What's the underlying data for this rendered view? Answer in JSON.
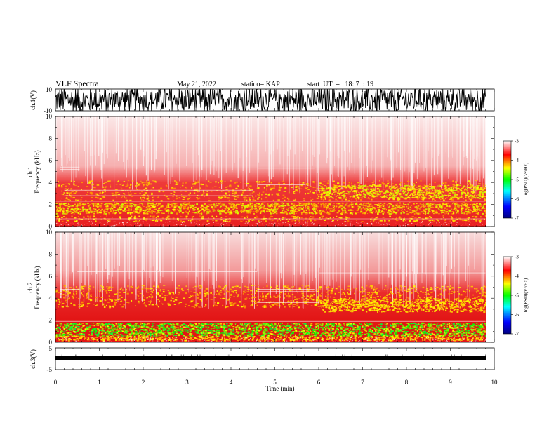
{
  "header": {
    "title": "VLF Spectra",
    "date": "May 21, 2022",
    "station": "station= KAP",
    "start_ut": "start  UT  =   18: 7  : 19"
  },
  "axes": {
    "ch1_volt_label": "ch.1(V)",
    "ch3_volt_label": "ch.3(V)",
    "ch1_freq_label_ch": "ch.1",
    "ch2_freq_label_ch": "ch.2",
    "freq_label": "Frequency  (kHz)",
    "xlabel": "Time  (min)",
    "colorbar_label": "log(PSD)(V²/Hz)",
    "ch1_volt_ticks": [
      "10",
      "-10"
    ],
    "ch3_volt_ticks": [
      "5",
      "-5"
    ],
    "freq_ticks": [
      "0",
      "2",
      "4",
      "6",
      "8",
      "10"
    ],
    "time_ticks": [
      "0",
      "1",
      "2",
      "3",
      "4",
      "5",
      "6",
      "7",
      "8",
      "9",
      "10"
    ],
    "colorbar_ticks": [
      "-3",
      "-4",
      "-5",
      "-6",
      "-7"
    ]
  },
  "chart_data": [
    {
      "type": "line",
      "title": "",
      "ylabel": "ch.1(V)",
      "xlabel": "Time (min)",
      "xlim": [
        0,
        10
      ],
      "ylim": [
        -10,
        10
      ],
      "description_of_series": "dense waveform saturating between about -10 and 10 V over 0 to 9.8 min",
      "color": "#000000"
    },
    {
      "type": "heatmap",
      "ylabel": "ch.1 Frequency (kHz)",
      "xlim": [
        0,
        10
      ],
      "ylim": [
        0,
        10
      ],
      "colorbar": {
        "label": "log(PSD)(V²/Hz)",
        "range": [
          -7,
          -3
        ]
      },
      "data_end_min": 9.8
    },
    {
      "type": "heatmap",
      "ylabel": "ch.2 Frequency (kHz)",
      "xlim": [
        0,
        10
      ],
      "ylim": [
        0,
        10
      ],
      "colorbar": {
        "label": "log(PSD)(V²/Hz)",
        "range": [
          -7,
          -3
        ]
      },
      "data_end_min": 9.8
    },
    {
      "type": "line",
      "ylabel": "ch.3(V)",
      "xlabel": "Time (min)",
      "xlim": [
        0,
        10
      ],
      "ylim": [
        -5,
        5
      ],
      "description_of_series": "flat thick band near -1 V over 0 to 9.8 min",
      "color": "#000000"
    }
  ],
  "colors": {
    "cmap": [
      "#00007f",
      "#0000ff",
      "#00ffff",
      "#00ff00",
      "#ffff00",
      "#ff0000",
      "#ffffff"
    ]
  }
}
